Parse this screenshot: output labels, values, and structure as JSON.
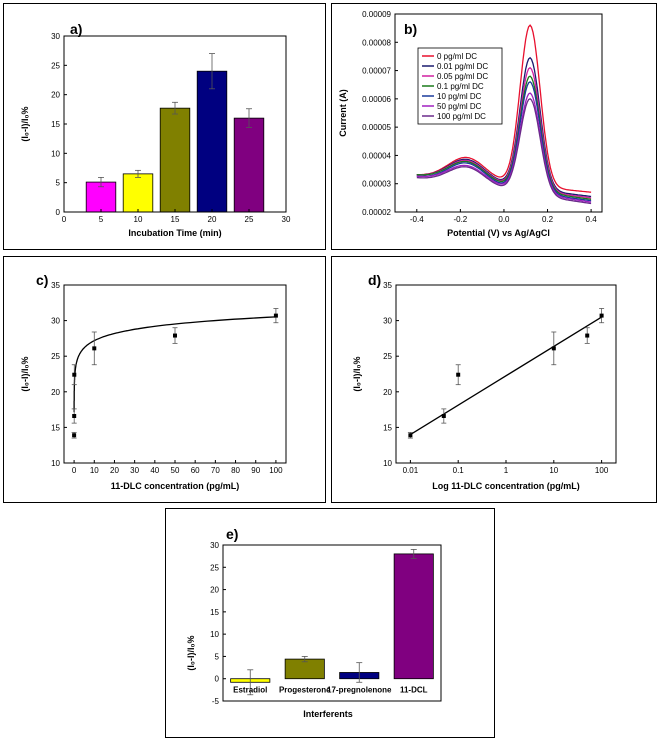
{
  "chart_data": [
    {
      "id": "a",
      "panel_label": "a)",
      "type": "bar",
      "xlabel": "Incubation Time (min)",
      "ylabel": "(I₀-I)/I₀%",
      "xlim": [
        0,
        30
      ],
      "xticks": [
        0,
        5,
        10,
        15,
        20,
        25,
        30
      ],
      "ylim": [
        0,
        30
      ],
      "yticks": [
        0,
        5,
        10,
        15,
        20,
        25,
        30
      ],
      "bar_width": 4,
      "bars": [
        {
          "x": 5,
          "value": 5.1,
          "error": 0.8,
          "color": "#ff00ff"
        },
        {
          "x": 10,
          "value": 6.5,
          "error": 0.6,
          "color": "#ffff00"
        },
        {
          "x": 15,
          "value": 17.7,
          "error": 1.0,
          "color": "#808000"
        },
        {
          "x": 20,
          "value": 24.0,
          "error": 3.0,
          "color": "#000080"
        },
        {
          "x": 25,
          "value": 16.0,
          "error": 1.6,
          "color": "#800080"
        }
      ]
    },
    {
      "id": "b",
      "panel_label": "b)",
      "type": "line",
      "xlabel": "Potential (V) vs Ag/AgCl",
      "ylabel": "Current (A)",
      "xlim": [
        -0.5,
        0.45
      ],
      "xticks": [
        -0.4,
        -0.2,
        0.0,
        0.2,
        0.4
      ],
      "xticklabels": [
        "-0.4",
        "-0.2",
        "0.0",
        "0.2",
        "0.4"
      ],
      "ylim": [
        2e-05,
        9e-05
      ],
      "yticks": [
        2e-05,
        3e-05,
        4e-05,
        5e-05,
        6e-05,
        7e-05,
        8e-05,
        9e-05
      ],
      "yticklabels": [
        "0.00002",
        "0.00003",
        "0.00004",
        "0.00005",
        "0.00006",
        "0.00007",
        "0.00008",
        "0.00009"
      ],
      "legend_position": "top-center",
      "series": [
        {
          "name": "0 pg/ml DC",
          "color": "#e8102e",
          "start": 3.3e-05,
          "valley": 3.8e-05,
          "peak": 8.6e-05,
          "end": 2.7e-05
        },
        {
          "name": "0.01 pg/ml DC",
          "color": "#1a1a6e",
          "start": 3.3e-05,
          "valley": 3.7e-05,
          "peak": 7.45e-05,
          "end": 2.55e-05
        },
        {
          "name": "0.05 pg/ml DC",
          "color": "#d020a0",
          "start": 3.3e-05,
          "valley": 3.65e-05,
          "peak": 7.1e-05,
          "end": 2.5e-05
        },
        {
          "name": "0.1 pg/ml DC",
          "color": "#1a7a1a",
          "start": 3.3e-05,
          "valley": 3.6e-05,
          "peak": 6.8e-05,
          "end": 2.45e-05
        },
        {
          "name": "10 pg/ml DC",
          "color": "#1a3a9a",
          "start": 3.25e-05,
          "valley": 3.55e-05,
          "peak": 6.6e-05,
          "end": 2.4e-05
        },
        {
          "name": "50 pg/ml DC",
          "color": "#a020c0",
          "start": 3.25e-05,
          "valley": 3.45e-05,
          "peak": 6.2e-05,
          "end": 2.35e-05
        },
        {
          "name": "100 pg/ml DC",
          "color": "#6a2a8a",
          "start": 3.2e-05,
          "valley": 3.4e-05,
          "peak": 6e-05,
          "end": 2.3e-05
        }
      ]
    },
    {
      "id": "c",
      "panel_label": "c)",
      "type": "scatter",
      "xlabel": "11-DLC concentration (pg/mL)",
      "ylabel": "(I₀-I)/I₀%",
      "xlim": [
        -5,
        105
      ],
      "xticks": [
        0,
        10,
        20,
        30,
        40,
        50,
        60,
        70,
        80,
        90,
        100
      ],
      "ylim": [
        10,
        35
      ],
      "yticks": [
        10,
        15,
        20,
        25,
        30,
        35
      ],
      "points": [
        {
          "x": 0.01,
          "y": 13.9,
          "error": 0.4
        },
        {
          "x": 0.05,
          "y": 16.6,
          "error": 1.0
        },
        {
          "x": 0.1,
          "y": 22.4,
          "error": 1.4
        },
        {
          "x": 10,
          "y": 26.1,
          "error": 2.3
        },
        {
          "x": 50,
          "y": 27.9,
          "error": 1.1
        },
        {
          "x": 100,
          "y": 30.7,
          "error": 1.0
        }
      ],
      "fit": {
        "kind": "log",
        "a": 23.84,
        "b": 3.343
      }
    },
    {
      "id": "d",
      "panel_label": "d)",
      "type": "scatter",
      "xlabel": "Log 11-DLC concentration (pg/mL)",
      "ylabel": "(I₀-I)/I₀%",
      "xscale": "log",
      "xlim": [
        0.005,
        200
      ],
      "xticks": [
        0.01,
        0.1,
        1,
        10,
        100
      ],
      "xticklabels": [
        "0.01",
        "0.1",
        "1",
        "10",
        "100"
      ],
      "ylim": [
        10,
        35
      ],
      "yticks": [
        10,
        15,
        20,
        25,
        30,
        35
      ],
      "points": [
        {
          "x": 0.01,
          "y": 13.9,
          "error": 0.4
        },
        {
          "x": 0.05,
          "y": 16.6,
          "error": 1.0
        },
        {
          "x": 0.1,
          "y": 22.4,
          "error": 1.4
        },
        {
          "x": 10,
          "y": 26.1,
          "error": 2.3
        },
        {
          "x": 50,
          "y": 27.9,
          "error": 1.1
        },
        {
          "x": 100,
          "y": 30.7,
          "error": 1.0
        }
      ],
      "fit": {
        "kind": "linear-log",
        "x0": 0.01,
        "y0": 14.0,
        "x1": 100,
        "y1": 30.5
      }
    },
    {
      "id": "e",
      "panel_label": "e)",
      "type": "bar",
      "xlabel": "Interferents",
      "ylabel": "(I₀-I)/I₀%",
      "ylim": [
        -5,
        30
      ],
      "yticks": [
        -5,
        0,
        5,
        10,
        15,
        20,
        25,
        30
      ],
      "bars": [
        {
          "label": "Estradiol",
          "value": -0.8,
          "error": 2.8,
          "color": "#ffff00"
        },
        {
          "label": "Progesterone",
          "value": 4.4,
          "error": 0.6,
          "color": "#808000"
        },
        {
          "label": "17-pregnolenone",
          "value": 1.4,
          "error": 2.2,
          "color": "#000080"
        },
        {
          "label": "11-DCL",
          "value": 28.0,
          "error": 1.0,
          "color": "#800080"
        }
      ]
    }
  ]
}
